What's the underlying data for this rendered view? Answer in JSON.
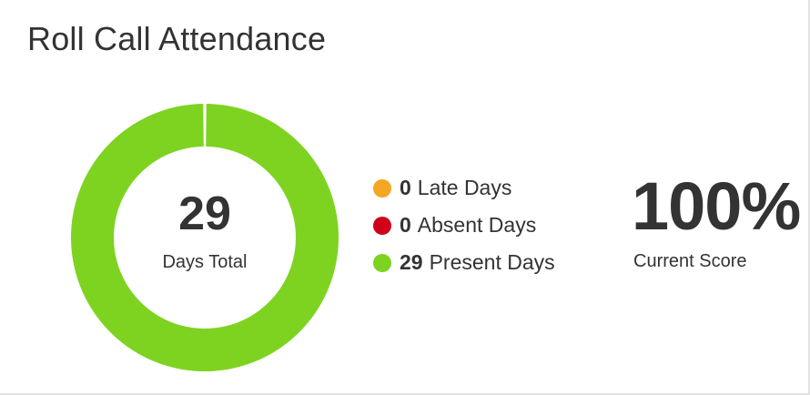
{
  "widget": {
    "title": "Roll Call Attendance"
  },
  "chart_data": {
    "type": "pie",
    "donut": true,
    "center_value": "29",
    "center_label": "Days Total",
    "slices": [
      {
        "name": "Late Days",
        "value": 0,
        "color": "#F5A623"
      },
      {
        "name": "Absent Days",
        "value": 0,
        "color": "#D0021B"
      },
      {
        "name": "Present Days",
        "value": 29,
        "color": "#7ED321"
      }
    ]
  },
  "legend": {
    "items": [
      {
        "count": "0",
        "label": "Late Days",
        "color": "#F5A623"
      },
      {
        "count": "0",
        "label": "Absent Days",
        "color": "#D0021B"
      },
      {
        "count": "29",
        "label": "Present Days",
        "color": "#7ED321"
      }
    ]
  },
  "score": {
    "value": "100%",
    "label": "Current Score"
  }
}
